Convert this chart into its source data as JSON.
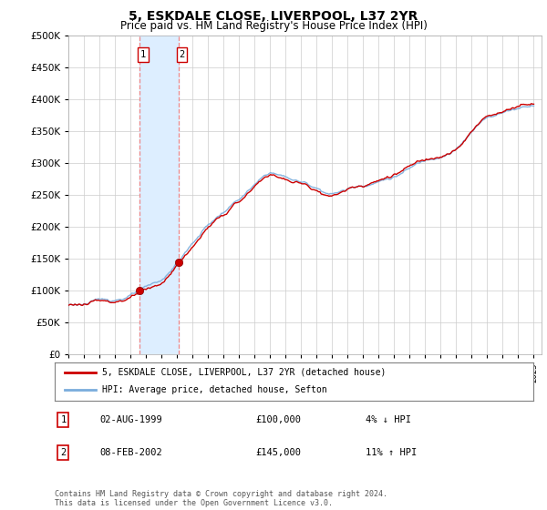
{
  "title": "5, ESKDALE CLOSE, LIVERPOOL, L37 2YR",
  "subtitle": "Price paid vs. HM Land Registry's House Price Index (HPI)",
  "hpi_label": "HPI: Average price, detached house, Sefton",
  "property_label": "5, ESKDALE CLOSE, LIVERPOOL, L37 2YR (detached house)",
  "transaction1_date": "02-AUG-1999",
  "transaction1_price": "£100,000",
  "transaction1_hpi": "4% ↓ HPI",
  "transaction2_date": "08-FEB-2002",
  "transaction2_price": "£145,000",
  "transaction2_hpi": "11% ↑ HPI",
  "footer": "Contains HM Land Registry data © Crown copyright and database right 2024.\nThis data is licensed under the Open Government Licence v3.0.",
  "property_color": "#cc0000",
  "hpi_color": "#7aaddc",
  "shaded_color": "#ddeeff",
  "marker_color": "#cc0000",
  "ylim": [
    0,
    500000
  ],
  "yticks": [
    0,
    50000,
    100000,
    150000,
    200000,
    250000,
    300000,
    350000,
    400000,
    450000,
    500000
  ],
  "xlabel_start_year": 1995,
  "xlabel_end_year": 2025,
  "transaction1_x": 1999.583,
  "transaction1_y": 100000,
  "transaction2_x": 2002.083,
  "transaction2_y": 145000,
  "shaded_x1": 1999.583,
  "shaded_x2": 2002.083,
  "xlim_left": 1995,
  "xlim_right": 2025.5
}
